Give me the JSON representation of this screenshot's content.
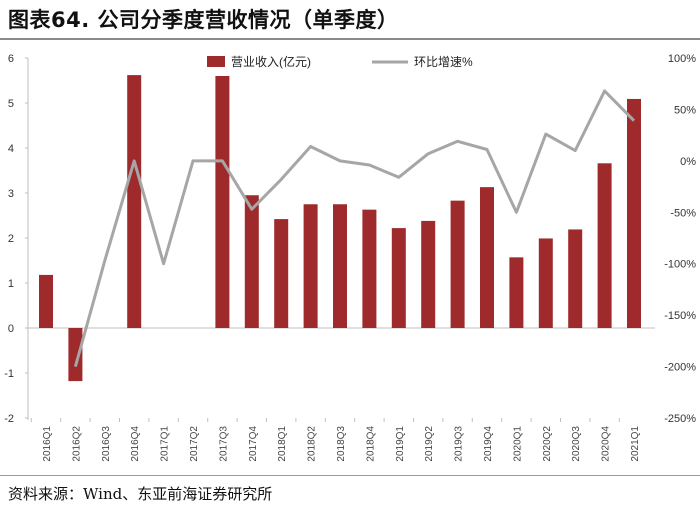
{
  "figure": {
    "title": "图表64. 公司分季度营收情况（单季度）",
    "source": "资料来源：Wind、东亚前海证券研究所"
  },
  "chart_data": {
    "type": "bar",
    "categories": [
      "2016Q1",
      "2016Q2",
      "2016Q3",
      "2016Q4",
      "2017Q1",
      "2017Q2",
      "2017Q3",
      "2017Q4",
      "2018Q1",
      "2018Q2",
      "2018Q3",
      "2018Q4",
      "2019Q1",
      "2019Q2",
      "2019Q3",
      "2019Q4",
      "2020Q1",
      "2020Q2",
      "2020Q3",
      "2020Q4",
      "2021Q1"
    ],
    "series": [
      {
        "name": "营业收入(亿元)",
        "type": "bar",
        "axis": "left",
        "color": "#9e2a2b",
        "values": [
          1.18,
          -1.18,
          null,
          5.62,
          null,
          null,
          5.6,
          2.95,
          2.42,
          2.75,
          2.75,
          2.63,
          2.22,
          2.38,
          2.83,
          3.13,
          1.57,
          1.99,
          2.19,
          3.66,
          5.09
        ]
      },
      {
        "name": "环比增速%",
        "type": "line",
        "axis": "right",
        "color": "#a6a6a6",
        "values": [
          null,
          -200,
          -97,
          0,
          -100,
          0,
          0,
          -47,
          -18,
          14,
          0,
          -4,
          -16,
          7,
          19,
          11,
          -50,
          26,
          10,
          68,
          39
        ]
      }
    ],
    "y_left": {
      "ylim": [
        -2,
        6
      ],
      "ticks": [
        "-2",
        "-1",
        "0",
        "1",
        "2",
        "3",
        "4",
        "5",
        "6"
      ]
    },
    "y_right": {
      "ylim": [
        -250,
        100
      ],
      "ticks": [
        "-250%",
        "-200%",
        "-150%",
        "-100%",
        "-50%",
        "0%",
        "50%",
        "100%"
      ]
    },
    "legend": "top-center",
    "grid": false
  }
}
